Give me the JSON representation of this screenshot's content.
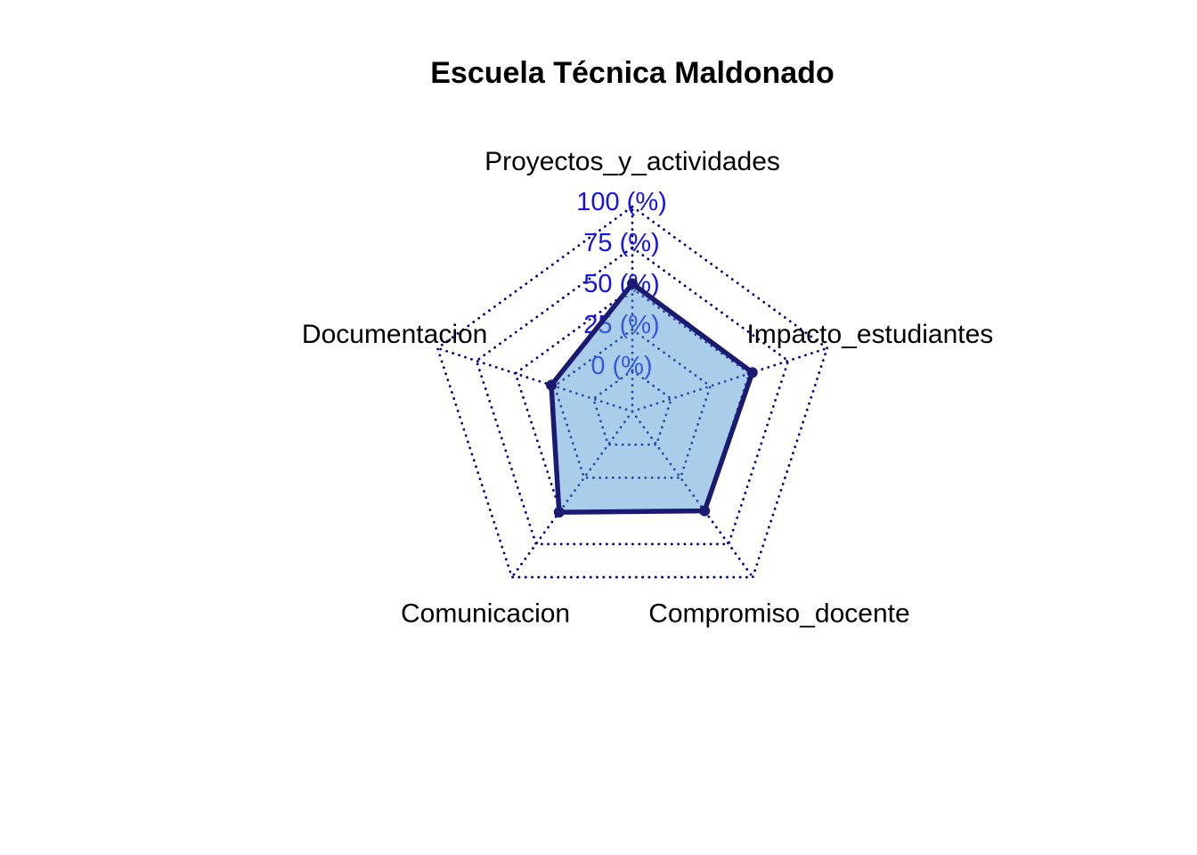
{
  "title": "Escuela Técnica Maldonado",
  "chart_data": {
    "type": "radar",
    "title": "Escuela Técnica Maldonado",
    "axes": [
      "Proyectos_y_actividades",
      "Impacto_estudiantes",
      "Compromiso_docente",
      "Comunicacion",
      "Documentacion"
    ],
    "series": [
      {
        "name": "Escuela Técnica Maldonado",
        "values": [
          53,
          52,
          50,
          51,
          27
        ]
      }
    ],
    "value_unit": "%",
    "axis_range": [
      0,
      100
    ],
    "tick_values": [
      0,
      25,
      50,
      75,
      100
    ],
    "tick_labels": [
      "0 (%)",
      "25 (%)",
      "50 (%)",
      "75 (%)",
      "100 (%)"
    ],
    "grid_style": "dotted-pentagon-rings-with-spokes",
    "legend": "none",
    "center_gap_fraction": 0.2,
    "colors": {
      "background": "#ffffff",
      "title_text": "#000000",
      "axis_label_text": "#000000",
      "tick_label_text": "#1414e6",
      "grid_line": "#000080",
      "series_line": "#1a1a73",
      "series_point": "#1a1a73",
      "series_fill": "#559bd5",
      "series_fill_opacity": 0.5
    }
  }
}
